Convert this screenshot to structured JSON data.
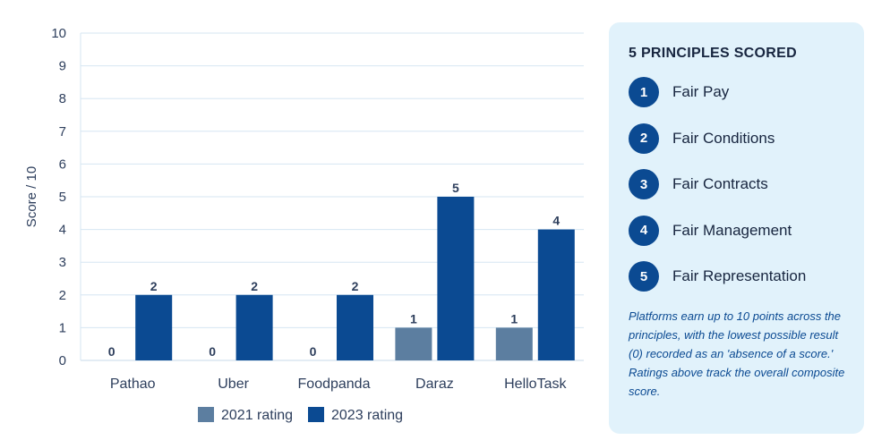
{
  "chart_data": {
    "type": "bar",
    "title": "",
    "xlabel": "",
    "ylabel": "Score / 10",
    "ylim": [
      0,
      10
    ],
    "yticks": [
      0,
      1,
      2,
      3,
      4,
      5,
      6,
      7,
      8,
      9,
      10
    ],
    "grid": true,
    "legend_position": "bottom",
    "categories": [
      "Pathao",
      "Uber",
      "Foodpanda",
      "Daraz",
      "HelloTask"
    ],
    "series": [
      {
        "name": "2021 rating",
        "color": "#5c7ea0",
        "values": [
          0,
          0,
          0,
          1,
          1
        ]
      },
      {
        "name": "2023 rating",
        "color": "#0b4a92",
        "values": [
          2,
          2,
          2,
          5,
          4
        ]
      }
    ]
  },
  "panel": {
    "title": "5 PRINCIPLES SCORED",
    "principles": [
      {
        "number": "1",
        "label": "Fair Pay"
      },
      {
        "number": "2",
        "label": "Fair Conditions"
      },
      {
        "number": "3",
        "label": "Fair Contracts"
      },
      {
        "number": "4",
        "label": "Fair Management"
      },
      {
        "number": "5",
        "label": "Fair Representation"
      }
    ],
    "note": "Platforms earn up to 10 points across the principles, with the lowest possible result (0) recorded as an 'absence of a score.' Ratings above track the overall composite score."
  }
}
